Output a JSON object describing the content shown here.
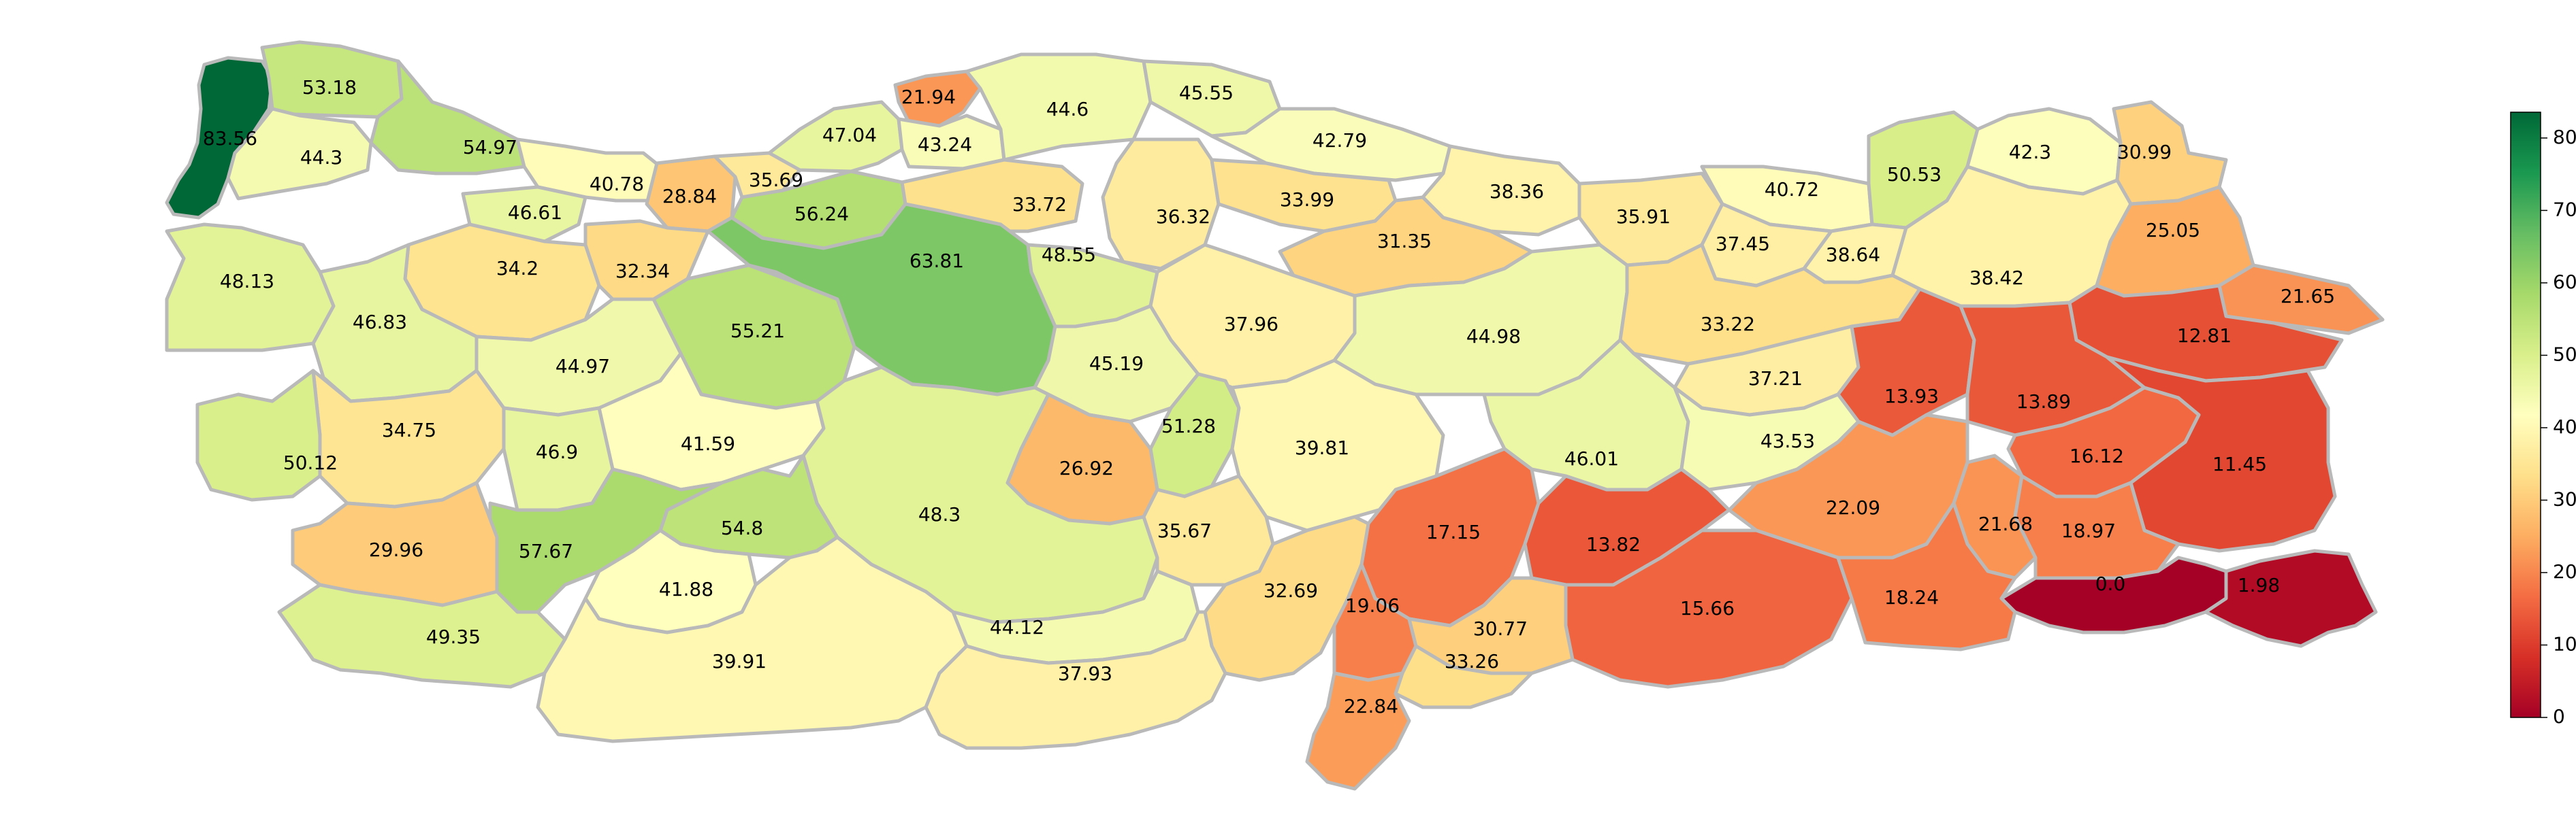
{
  "colorbar": {
    "min": 0,
    "max": 83.56,
    "ticks": [
      "0",
      "10",
      "20",
      "30",
      "40",
      "50",
      "60",
      "70",
      "80"
    ],
    "tick_values": [
      0,
      10,
      20,
      30,
      40,
      50,
      60,
      70,
      80
    ],
    "colormap": "RdYlGn",
    "stops": [
      "#a50026",
      "#d73027",
      "#f46d43",
      "#fdae61",
      "#fee08b",
      "#ffffbf",
      "#d9ef8b",
      "#a6d96a",
      "#66bd63",
      "#1a9850",
      "#006837"
    ]
  },
  "border_color": "#b9b9b9",
  "regions": [
    {
      "id": "r01",
      "label": "83.56",
      "value": 83.56
    },
    {
      "id": "r02",
      "label": "53.18",
      "value": 53.18
    },
    {
      "id": "r03",
      "label": "44.3",
      "value": 44.3
    },
    {
      "id": "r04",
      "label": "54.97",
      "value": 54.97
    },
    {
      "id": "r05",
      "label": "40.78",
      "value": 40.78
    },
    {
      "id": "r06",
      "label": "46.61",
      "value": 46.61
    },
    {
      "id": "r07",
      "label": "28.84",
      "value": 28.84
    },
    {
      "id": "r08",
      "label": "35.69",
      "value": 35.69
    },
    {
      "id": "r09",
      "label": "56.24",
      "value": 56.24
    },
    {
      "id": "r10",
      "label": "47.04",
      "value": 47.04
    },
    {
      "id": "r11",
      "label": "21.94",
      "value": 21.94
    },
    {
      "id": "r12",
      "label": "43.24",
      "value": 43.24
    },
    {
      "id": "r13",
      "label": "44.6",
      "value": 44.6
    },
    {
      "id": "r14",
      "label": "45.55",
      "value": 45.55
    },
    {
      "id": "r15",
      "label": "42.79",
      "value": 42.79
    },
    {
      "id": "r16",
      "label": "33.72",
      "value": 33.72
    },
    {
      "id": "r17",
      "label": "36.32",
      "value": 36.32
    },
    {
      "id": "r18",
      "label": "33.99",
      "value": 33.99
    },
    {
      "id": "r19",
      "label": "38.36",
      "value": 38.36
    },
    {
      "id": "r20",
      "label": "31.35",
      "value": 31.35
    },
    {
      "id": "r21",
      "label": "35.91",
      "value": 35.91
    },
    {
      "id": "r22",
      "label": "40.72",
      "value": 40.72
    },
    {
      "id": "r23",
      "label": "50.53",
      "value": 50.53
    },
    {
      "id": "r24",
      "label": "42.3",
      "value": 42.3
    },
    {
      "id": "r25",
      "label": "30.99",
      "value": 30.99
    },
    {
      "id": "r26",
      "label": "37.45",
      "value": 37.45
    },
    {
      "id": "r27",
      "label": "38.64",
      "value": 38.64
    },
    {
      "id": "r28",
      "label": "38.42",
      "value": 38.42
    },
    {
      "id": "r29",
      "label": "25.05",
      "value": 25.05
    },
    {
      "id": "r30",
      "label": "21.65",
      "value": 21.65
    },
    {
      "id": "r31",
      "label": "12.81",
      "value": 12.81
    },
    {
      "id": "r32",
      "label": "48.13",
      "value": 48.13
    },
    {
      "id": "r33",
      "label": "34.2",
      "value": 34.2
    },
    {
      "id": "r34",
      "label": "32.34",
      "value": 32.34
    },
    {
      "id": "r35",
      "label": "46.83",
      "value": 46.83
    },
    {
      "id": "r36",
      "label": "63.81",
      "value": 63.81
    },
    {
      "id": "r37",
      "label": "48.55",
      "value": 48.55
    },
    {
      "id": "r38",
      "label": "55.21",
      "value": 55.21
    },
    {
      "id": "r39",
      "label": "44.97",
      "value": 44.97
    },
    {
      "id": "r40",
      "label": "37.96",
      "value": 37.96
    },
    {
      "id": "r41",
      "label": "44.98",
      "value": 44.98
    },
    {
      "id": "r42",
      "label": "33.22",
      "value": 33.22
    },
    {
      "id": "r43",
      "label": "45.19",
      "value": 45.19
    },
    {
      "id": "r44",
      "label": "37.21",
      "value": 37.21
    },
    {
      "id": "r45",
      "label": "13.93",
      "value": 13.93
    },
    {
      "id": "r46",
      "label": "13.89",
      "value": 13.89
    },
    {
      "id": "r47",
      "label": "34.75",
      "value": 34.75
    },
    {
      "id": "r48",
      "label": "41.59",
      "value": 41.59
    },
    {
      "id": "r49",
      "label": "51.28",
      "value": 51.28
    },
    {
      "id": "r50",
      "label": "46.9",
      "value": 46.9
    },
    {
      "id": "r51",
      "label": "50.12",
      "value": 50.12
    },
    {
      "id": "r52",
      "label": "39.81",
      "value": 39.81
    },
    {
      "id": "r53",
      "label": "46.01",
      "value": 46.01
    },
    {
      "id": "r54",
      "label": "43.53",
      "value": 43.53
    },
    {
      "id": "r55",
      "label": "16.12",
      "value": 16.12
    },
    {
      "id": "r56",
      "label": "11.45",
      "value": 11.45
    },
    {
      "id": "r57",
      "label": "26.92",
      "value": 26.92
    },
    {
      "id": "r58",
      "label": "22.09",
      "value": 22.09
    },
    {
      "id": "r59",
      "label": "21.68",
      "value": 21.68
    },
    {
      "id": "r60",
      "label": "48.3",
      "value": 48.3
    },
    {
      "id": "r61",
      "label": "54.8",
      "value": 54.8
    },
    {
      "id": "r62",
      "label": "57.67",
      "value": 57.67
    },
    {
      "id": "r63",
      "label": "29.96",
      "value": 29.96
    },
    {
      "id": "r64",
      "label": "17.15",
      "value": 17.15
    },
    {
      "id": "r65",
      "label": "13.82",
      "value": 13.82
    },
    {
      "id": "r66",
      "label": "35.67",
      "value": 35.67
    },
    {
      "id": "r67",
      "label": "18.97",
      "value": 18.97
    },
    {
      "id": "r68",
      "label": "32.69",
      "value": 32.69
    },
    {
      "id": "r69",
      "label": "0.0",
      "value": 0.0
    },
    {
      "id": "r70",
      "label": "1.98",
      "value": 1.98
    },
    {
      "id": "r71",
      "label": "41.88",
      "value": 41.88
    },
    {
      "id": "r72",
      "label": "19.06",
      "value": 19.06
    },
    {
      "id": "r73",
      "label": "15.66",
      "value": 15.66
    },
    {
      "id": "r74",
      "label": "18.24",
      "value": 18.24
    },
    {
      "id": "r75",
      "label": "49.35",
      "value": 49.35
    },
    {
      "id": "r76",
      "label": "44.12",
      "value": 44.12
    },
    {
      "id": "r77",
      "label": "30.77",
      "value": 30.77
    },
    {
      "id": "r78",
      "label": "33.26",
      "value": 33.26
    },
    {
      "id": "r79",
      "label": "39.91",
      "value": 39.91
    },
    {
      "id": "r80",
      "label": "37.93",
      "value": 37.93
    },
    {
      "id": "r81",
      "label": "22.84",
      "value": 22.84
    }
  ]
}
